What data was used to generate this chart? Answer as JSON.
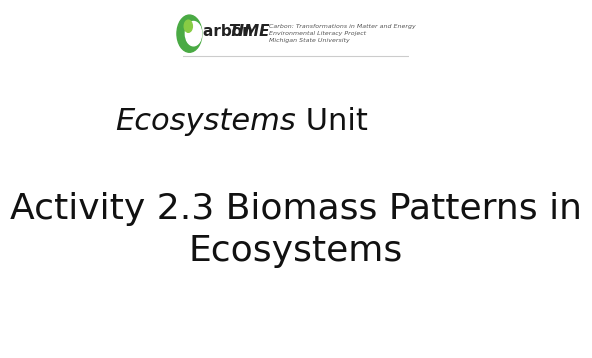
{
  "background_color": "#ffffff",
  "header_line1": "Carbon: Transformations in Matter and Energy",
  "header_line2": "Environmental Literacy Project",
  "header_line3": "Michigan State University",
  "header_text_color": "#555555",
  "header_brand_color": "#222222",
  "header_font_size": 6.5,
  "title_line1_italic": "Ecosystems",
  "title_line1_normal": " Unit",
  "title_line2": "Activity 2.3 Biomass Patterns in\nEcosystems",
  "title_color": "#111111",
  "title_fontsize": 22,
  "subtitle_fontsize": 26,
  "logo_green_dark": "#4aaa44",
  "logo_green_light": "#88cc44",
  "divider_color": "#cccccc"
}
